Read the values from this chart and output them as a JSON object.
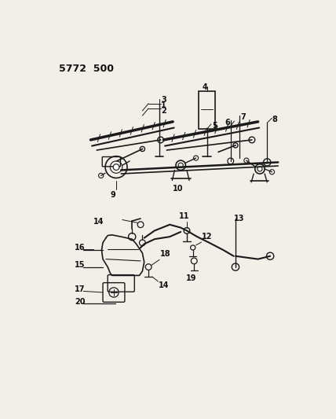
{
  "bg_color": "#f2efe9",
  "line_color": "#1a1a1a",
  "text_color": "#111111",
  "figsize": [
    4.28,
    5.33
  ],
  "dpi": 100,
  "title": "5772  500"
}
